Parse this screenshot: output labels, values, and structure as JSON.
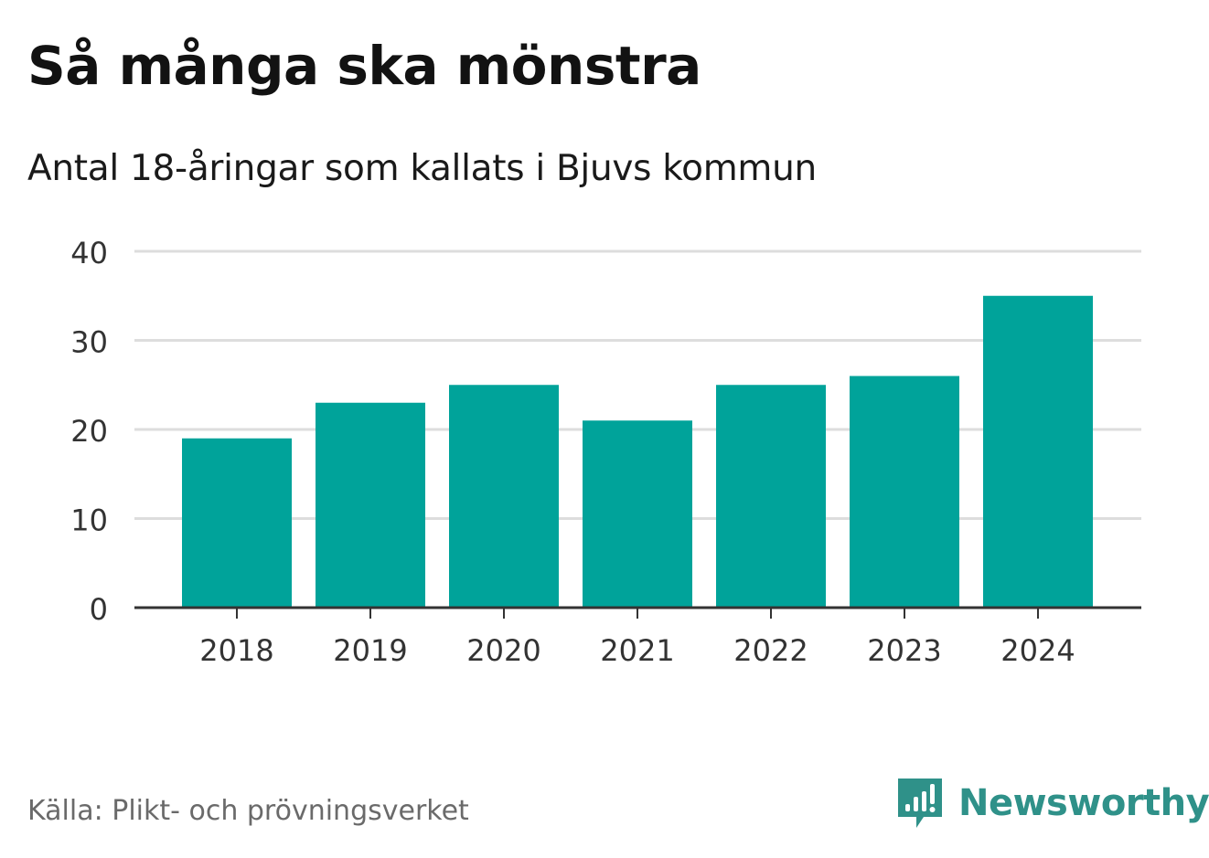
{
  "chart_data": {
    "type": "bar",
    "title": "Så många ska mönstra",
    "subtitle": "Antal 18-åringar som kallats i Bjuvs kommun",
    "categories": [
      "2018",
      "2019",
      "2020",
      "2021",
      "2022",
      "2023",
      "2024"
    ],
    "values": [
      19,
      23,
      25,
      21,
      25,
      26,
      35
    ],
    "ylim": [
      0,
      40
    ],
    "yticks": [
      "0",
      "10",
      "20",
      "30",
      "40"
    ],
    "xlabel": "",
    "ylabel": "",
    "grid": true,
    "bar_color": "#00a39a",
    "grid_color": "#dddddd",
    "axis_color": "#333333"
  },
  "footer": {
    "source": "Källa: Plikt- och prövningsverket"
  },
  "brand": {
    "name": "Newsworthy",
    "icon": "newsworthy-logo-icon",
    "color": "#2f9189"
  }
}
